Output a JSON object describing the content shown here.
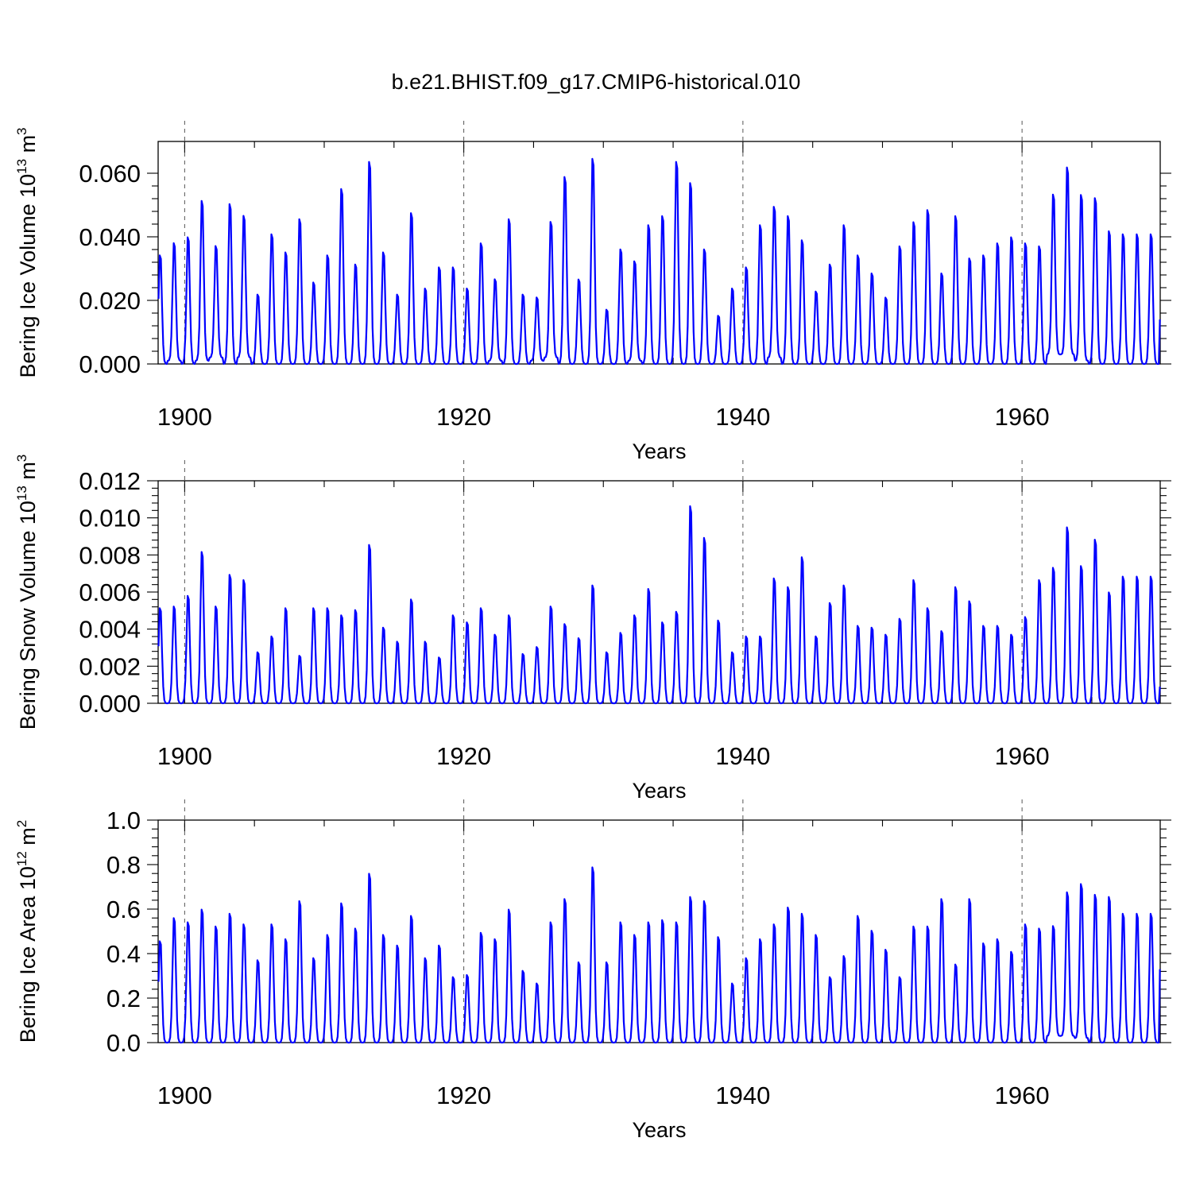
{
  "figure": {
    "title": "b.e21.BHIST.f09_g17.CMIP6-historical.010"
  },
  "chart_data": [
    {
      "type": "line",
      "name": "ice-volume",
      "ylabel_main": "Bering Ice Volume 10",
      "ylabel_exp": "13",
      "ylabel_unit": " m",
      "ylabel_unit_exp": "3",
      "xlabel": "Years",
      "xlim": [
        1898.1,
        1969.9
      ],
      "ylim": [
        0.0,
        0.07
      ],
      "yticks": [
        0.0,
        0.02,
        0.04,
        0.06
      ],
      "ytick_labels": [
        "0.000",
        "0.020",
        "0.040",
        "0.060"
      ],
      "xticks": [
        1900,
        1920,
        1940,
        1960
      ],
      "xtick_labels": [
        "1900",
        "1920",
        "1940",
        "1960"
      ],
      "grid_years": [
        1900,
        1920,
        1940,
        1960
      ],
      "series": [
        {
          "name": "ice volume",
          "color": "#0000ff",
          "start_year": 1898.13,
          "annual_peaks": [
            0.036,
            0.04,
            0.042,
            0.054,
            0.039,
            0.053,
            0.049,
            0.023,
            0.043,
            0.037,
            0.048,
            0.027,
            0.036,
            0.058,
            0.033,
            0.067,
            0.037,
            0.023,
            0.05,
            0.025,
            0.032,
            0.032,
            0.025,
            0.04,
            0.028,
            0.048,
            0.023,
            0.022,
            0.047,
            0.062,
            0.028,
            0.068,
            0.018,
            0.038,
            0.034,
            0.046,
            0.049,
            0.067,
            0.06,
            0.038,
            0.016,
            0.025,
            0.032,
            0.046,
            0.052,
            0.049,
            0.041,
            0.024,
            0.033,
            0.046,
            0.036,
            0.03,
            0.022,
            0.039,
            0.047,
            0.051,
            0.03,
            0.049,
            0.035,
            0.036,
            0.04,
            0.042,
            0.04,
            0.039,
            0.056,
            0.065,
            0.056,
            0.055,
            0.044,
            0.043
          ],
          "annual_troughs": [
            0.0,
            0.001,
            0.0,
            0.001,
            0.002,
            0.0,
            0.002,
            0.0,
            0.0,
            0.0,
            0.0,
            0.0,
            0.0,
            0.0,
            0.0,
            0.0,
            0.0,
            0.0,
            0.0,
            0.0,
            0.0,
            0.0,
            0.0,
            0.0,
            0.001,
            0.0,
            0.0,
            0.001,
            0.002,
            0.0,
            0.0,
            0.0,
            0.0,
            0.0,
            0.001,
            0.0,
            0.0,
            0.0,
            0.0,
            0.0,
            0.0,
            0.0,
            0.0,
            0.0,
            0.002,
            0.0,
            0.0,
            0.0,
            0.0,
            0.0,
            0.0,
            0.0,
            0.0,
            0.0,
            0.0,
            0.0,
            0.0,
            0.0,
            0.0,
            0.0,
            0.0,
            0.0,
            0.0,
            0.0,
            0.003,
            0.003,
            0.001,
            0.0,
            0.0,
            0.0
          ],
          "end_value": 0.014
        }
      ]
    },
    {
      "type": "line",
      "name": "snow-volume",
      "ylabel_main": "Bering Snow Volume 10",
      "ylabel_exp": "13",
      "ylabel_unit": " m",
      "ylabel_unit_exp": "3",
      "xlabel": "Years",
      "xlim": [
        1898.1,
        1969.9
      ],
      "ylim": [
        0.0,
        0.012
      ],
      "yticks": [
        0.0,
        0.002,
        0.004,
        0.006,
        0.008,
        0.01,
        0.012
      ],
      "ytick_labels": [
        "0.000",
        "0.002",
        "0.004",
        "0.006",
        "0.008",
        "0.010",
        "0.012"
      ],
      "xticks": [
        1900,
        1920,
        1940,
        1960
      ],
      "xtick_labels": [
        "1900",
        "1920",
        "1940",
        "1960"
      ],
      "grid_years": [
        1900,
        1920,
        1940,
        1960
      ],
      "series": [
        {
          "name": "snow volume",
          "color": "#0000ff",
          "start_year": 1898.13,
          "annual_peaks": [
            0.0054,
            0.0055,
            0.0061,
            0.0086,
            0.0055,
            0.0073,
            0.007,
            0.0029,
            0.0038,
            0.0054,
            0.0027,
            0.0054,
            0.0054,
            0.005,
            0.0053,
            0.009,
            0.0043,
            0.0035,
            0.0059,
            0.0035,
            0.0026,
            0.005,
            0.0046,
            0.0054,
            0.0039,
            0.005,
            0.0028,
            0.0032,
            0.0055,
            0.0045,
            0.0037,
            0.0067,
            0.0029,
            0.004,
            0.005,
            0.0065,
            0.0046,
            0.0052,
            0.0112,
            0.0094,
            0.0047,
            0.0029,
            0.0038,
            0.0038,
            0.0071,
            0.0066,
            0.0083,
            0.0038,
            0.0057,
            0.0067,
            0.0044,
            0.0043,
            0.0039,
            0.0048,
            0.007,
            0.0054,
            0.0041,
            0.0066,
            0.0058,
            0.0044,
            0.0044,
            0.0039,
            0.0049,
            0.007,
            0.0077,
            0.01,
            0.0078,
            0.0093,
            0.0063,
            0.0072
          ],
          "annual_troughs": [
            0,
            0,
            0,
            0,
            0,
            0,
            0,
            0,
            0,
            0,
            0,
            0,
            0,
            0,
            0,
            0,
            0,
            0,
            0,
            0,
            0,
            0,
            0,
            0,
            0,
            0,
            0,
            0,
            0,
            0,
            0,
            0,
            0,
            0,
            0,
            0,
            0,
            0,
            0,
            0,
            0,
            0,
            0,
            0,
            0,
            0,
            0,
            0,
            0,
            0,
            0,
            0,
            0,
            0,
            0,
            0,
            0,
            0,
            0,
            0,
            0,
            0,
            0,
            0,
            0,
            0,
            0,
            0,
            0,
            0
          ],
          "end_value": 0.0009
        }
      ]
    },
    {
      "type": "line",
      "name": "ice-area",
      "ylabel_main": "Bering Ice Area 10",
      "ylabel_exp": "12",
      "ylabel_unit": " m",
      "ylabel_unit_exp": "2",
      "xlabel": "Years",
      "xlim": [
        1898.1,
        1969.9
      ],
      "ylim": [
        0.0,
        1.0
      ],
      "yticks": [
        0.0,
        0.2,
        0.4,
        0.6,
        0.8,
        1.0
      ],
      "ytick_labels": [
        "0.0",
        "0.2",
        "0.4",
        "0.6",
        "0.8",
        "1.0"
      ],
      "xticks": [
        1900,
        1920,
        1940,
        1960
      ],
      "xtick_labels": [
        "1900",
        "1920",
        "1940",
        "1960"
      ],
      "grid_years": [
        1900,
        1920,
        1940,
        1960
      ],
      "series": [
        {
          "name": "ice area",
          "color": "#0000ff",
          "start_year": 1898.13,
          "annual_peaks": [
            0.48,
            0.59,
            0.57,
            0.63,
            0.55,
            0.61,
            0.56,
            0.39,
            0.56,
            0.49,
            0.67,
            0.4,
            0.51,
            0.66,
            0.54,
            0.8,
            0.51,
            0.46,
            0.6,
            0.4,
            0.46,
            0.31,
            0.32,
            0.52,
            0.49,
            0.63,
            0.34,
            0.28,
            0.57,
            0.68,
            0.38,
            0.83,
            0.38,
            0.57,
            0.51,
            0.57,
            0.58,
            0.57,
            0.69,
            0.67,
            0.5,
            0.28,
            0.4,
            0.49,
            0.56,
            0.64,
            0.61,
            0.51,
            0.31,
            0.41,
            0.6,
            0.53,
            0.44,
            0.31,
            0.55,
            0.55,
            0.68,
            0.37,
            0.68,
            0.47,
            0.49,
            0.43,
            0.56,
            0.54,
            0.55,
            0.71,
            0.75,
            0.7,
            0.69,
            0.61
          ],
          "annual_troughs": [
            0,
            0,
            0,
            0,
            0,
            0,
            0,
            0,
            0,
            0,
            0,
            0,
            0,
            0,
            0,
            0,
            0,
            0,
            0,
            0,
            0,
            0,
            0,
            0,
            0,
            0,
            0,
            0,
            0,
            0,
            0,
            0,
            0,
            0,
            0,
            0,
            0,
            0,
            0,
            0,
            0,
            0,
            0,
            0,
            0,
            0,
            0,
            0,
            0,
            0,
            0,
            0,
            0,
            0,
            0,
            0,
            0,
            0,
            0,
            0,
            0,
            0,
            0,
            0,
            0.03,
            0.03,
            0.02,
            0,
            0,
            0
          ],
          "end_value": 0.33
        }
      ]
    }
  ]
}
